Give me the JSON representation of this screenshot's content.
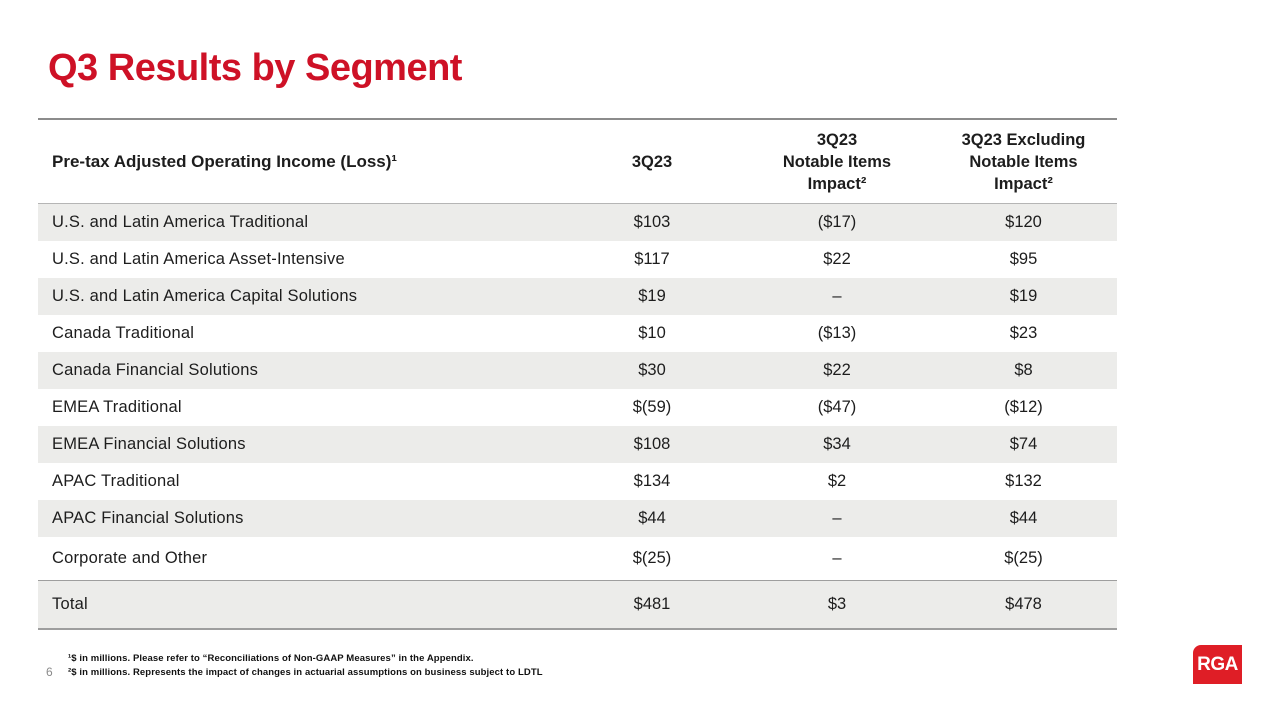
{
  "title": "Q3 Results by Segment",
  "page_number": "6",
  "logo": {
    "text": "RGA"
  },
  "colors": {
    "title_red": "#CE1126",
    "logo_red": "#DF1E26",
    "row_stripe": "#ECECEA",
    "table_border": "#8C8C8C"
  },
  "table": {
    "header": {
      "col1": "Pre-tax Adjusted Operating Income (Loss)¹",
      "col2": "3Q23",
      "col3_line1": "3Q23",
      "col3_line2": "Notable Items",
      "col3_line3": "Impact²",
      "col4_line1": "3Q23 Excluding",
      "col4_line2": "Notable Items",
      "col4_line3": "Impact²"
    },
    "rows": [
      {
        "label": "U.S. and Latin America Traditional",
        "q3": "$103",
        "notable": "($17)",
        "excluding": "$120"
      },
      {
        "label": "U.S. and Latin America Asset-Intensive",
        "q3": "$117",
        "notable": "$22",
        "excluding": "$95"
      },
      {
        "label": "U.S. and Latin America Capital Solutions",
        "q3": "$19",
        "notable": "–",
        "excluding": "$19"
      },
      {
        "label": "Canada Traditional",
        "q3": "$10",
        "notable": "($13)",
        "excluding": "$23"
      },
      {
        "label": "Canada Financial Solutions",
        "q3": "$30",
        "notable": "$22",
        "excluding": "$8"
      },
      {
        "label": "EMEA Traditional",
        "q3": "$(59)",
        "notable": "($47)",
        "excluding": "($12)"
      },
      {
        "label": "EMEA Financial Solutions",
        "q3": "$108",
        "notable": "$34",
        "excluding": "$74"
      },
      {
        "label": "APAC Traditional",
        "q3": "$134",
        "notable": "$2",
        "excluding": "$132"
      },
      {
        "label": "APAC Financial Solutions",
        "q3": "$44",
        "notable": "–",
        "excluding": "$44"
      },
      {
        "label": "Corporate and Other",
        "q3": "$(25)",
        "notable": "–",
        "excluding": "$(25)"
      }
    ],
    "total_row": {
      "label": "Total",
      "q3": "$481",
      "notable": "$3",
      "excluding": "$478"
    }
  },
  "footnotes": {
    "line1": "¹$ in millions. Please refer to “Reconciliations of Non-GAAP Measures” in the Appendix.",
    "line2": "²$ in millions. Represents the impact of changes in actuarial assumptions on business subject to LDTL"
  }
}
